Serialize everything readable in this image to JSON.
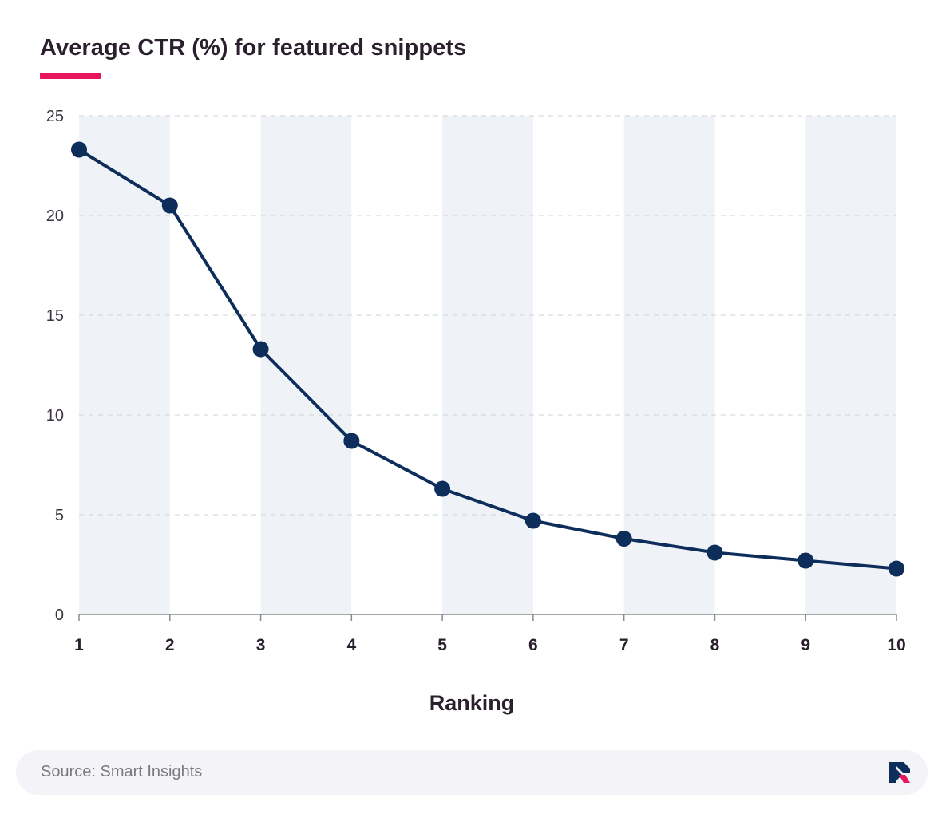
{
  "title": "Average CTR (%) for featured snippets",
  "source": "Source: Smart Insights",
  "colors": {
    "accent": "#e8175d",
    "line": "#0d2d5a",
    "band": "#eff3f7",
    "grid": "#cfd3d8",
    "axis": "#8a8a8a"
  },
  "icons": {
    "brand_logo": "brand-logo-icon"
  },
  "chart_data": {
    "type": "line",
    "title": "Average CTR (%) for featured snippets",
    "xlabel": "Ranking",
    "ylabel": "",
    "x": [
      1,
      2,
      3,
      4,
      5,
      6,
      7,
      8,
      9,
      10
    ],
    "x_tick_labels": [
      "1",
      "2",
      "3",
      "4",
      "5",
      "6",
      "7",
      "8",
      "9",
      "10"
    ],
    "y_ticks": [
      0,
      5,
      10,
      15,
      20,
      25
    ],
    "y_tick_labels": [
      "0",
      "5",
      "10",
      "15",
      "20",
      "25"
    ],
    "ylim": [
      0,
      25
    ],
    "grid": "horizontal-dashed",
    "series": [
      {
        "values": [
          23.3,
          20.5,
          13.3,
          8.7,
          6.3,
          4.7,
          3.8,
          3.1,
          2.7,
          2.3
        ]
      }
    ]
  }
}
